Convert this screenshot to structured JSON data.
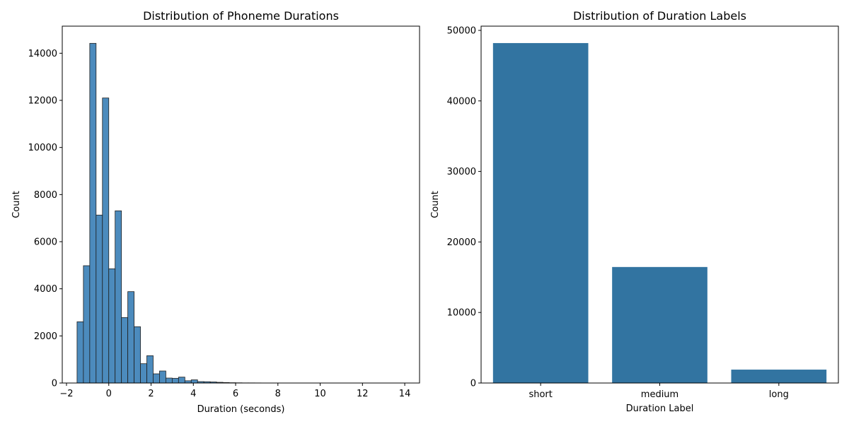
{
  "chart_data": [
    {
      "type": "bar",
      "title": "Distribution of Phoneme Durations",
      "xlabel": "Duration (seconds)",
      "ylabel": "Count",
      "xlim": [
        -2.2,
        14.7
      ],
      "ylim": [
        0,
        15150
      ],
      "x_ticks": [
        -2,
        0,
        2,
        4,
        6,
        8,
        10,
        12,
        14
      ],
      "x_tick_labels": [
        "−2",
        "0",
        "2",
        "4",
        "6",
        "8",
        "10",
        "12",
        "14"
      ],
      "y_ticks": [
        0,
        2000,
        4000,
        6000,
        8000,
        10000,
        12000,
        14000
      ],
      "y_tick_labels": [
        "0",
        "2000",
        "4000",
        "6000",
        "8000",
        "10000",
        "12000",
        "14000"
      ],
      "bin_width": 0.3,
      "bin_start": -1.5,
      "counts": [
        2600,
        4980,
        14420,
        7130,
        12100,
        4850,
        7310,
        2780,
        3880,
        2390,
        820,
        1160,
        390,
        510,
        210,
        200,
        250,
        95,
        135,
        60,
        55,
        45,
        30,
        20,
        12,
        8,
        5,
        5,
        4,
        3,
        3,
        3,
        2,
        2,
        2,
        2,
        2,
        2,
        2,
        2,
        2,
        2,
        2,
        1,
        1,
        1,
        1,
        1,
        1,
        1,
        1
      ],
      "color": "#4c8bbd",
      "grid": false
    },
    {
      "type": "bar",
      "title": "Distribution of Duration Labels",
      "xlabel": "Duration Label",
      "ylabel": "Count",
      "categories": [
        "short",
        "medium",
        "long"
      ],
      "values": [
        48200,
        16450,
        1900
      ],
      "ylim": [
        0,
        50600
      ],
      "y_ticks": [
        0,
        10000,
        20000,
        30000,
        40000,
        50000
      ],
      "y_tick_labels": [
        "0",
        "10000",
        "20000",
        "30000",
        "40000",
        "50000"
      ],
      "color": "#3274a1",
      "grid": false
    }
  ]
}
